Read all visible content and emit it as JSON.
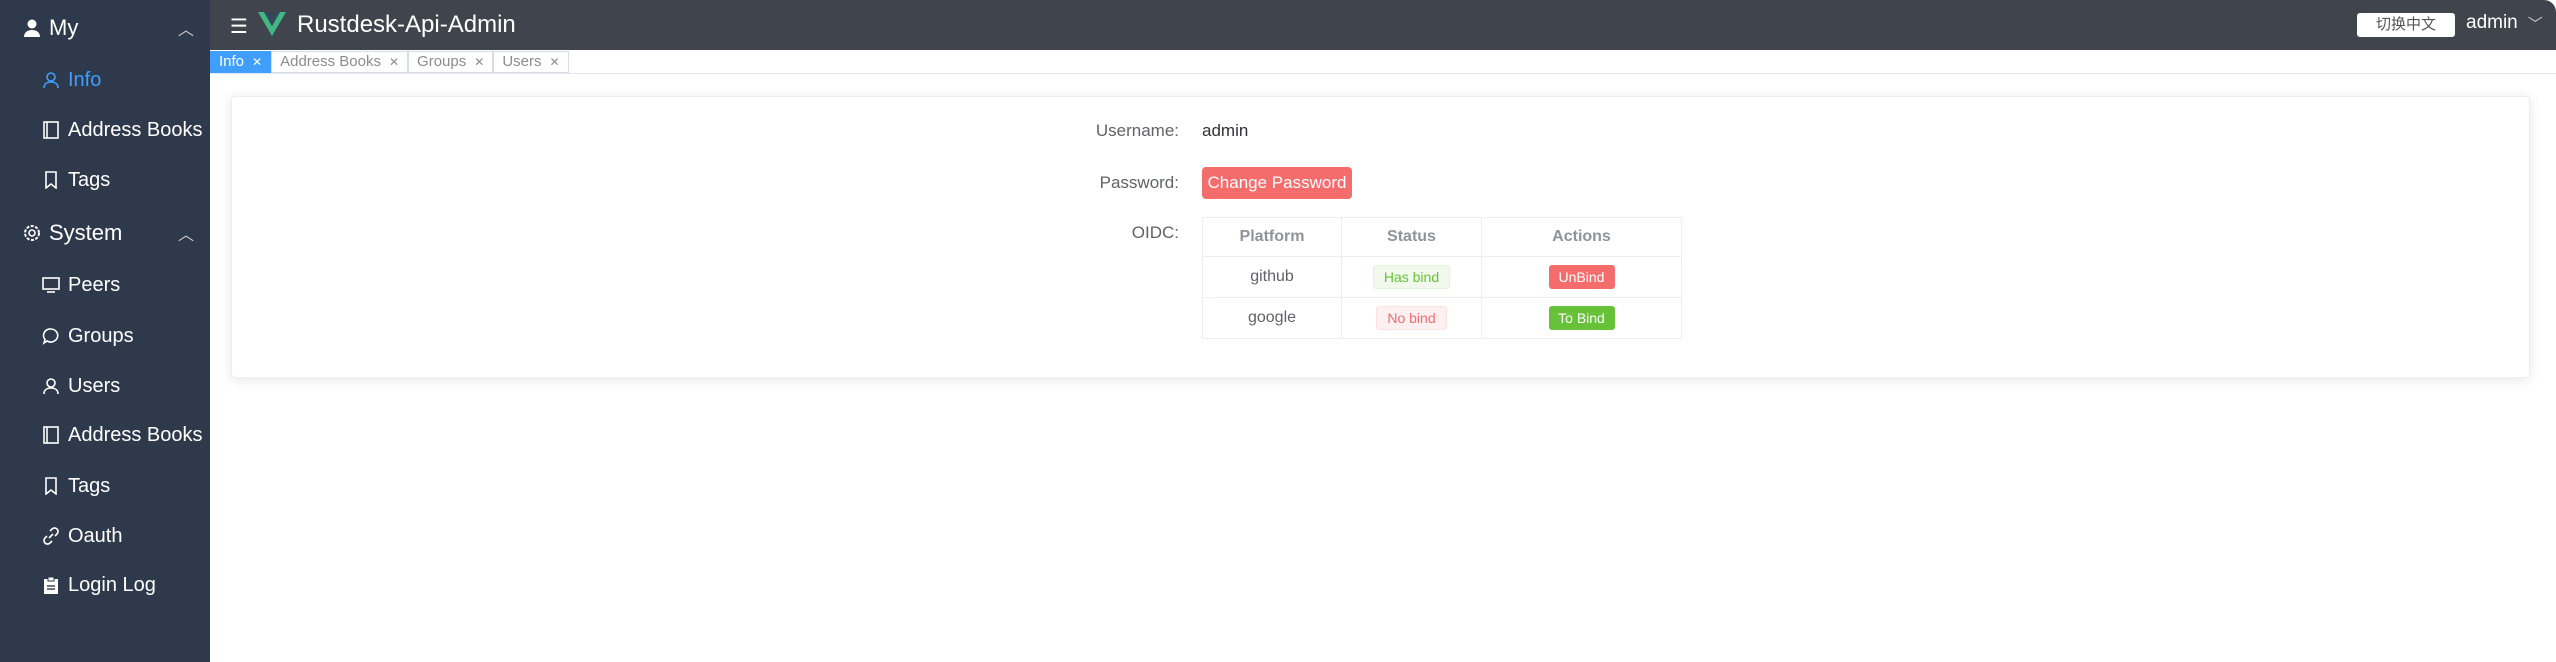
{
  "app": {
    "title": "Rustdesk-Api-Admin",
    "lang_button": "切换中文",
    "user": "admin"
  },
  "colors": {
    "sidebar": "#2e3a4b",
    "header": "#40444c",
    "accent": "#409eff",
    "danger": "#f56c6c",
    "success": "#67c23a"
  },
  "sidebar": {
    "groups": [
      {
        "label": "My",
        "icon": "user-icon",
        "items": [
          {
            "label": "Info",
            "icon": "user-outline-icon",
            "active": true
          },
          {
            "label": "Address Books",
            "icon": "book-icon"
          },
          {
            "label": "Tags",
            "icon": "bookmark-icon"
          }
        ]
      },
      {
        "label": "System",
        "icon": "gear-icon",
        "items": [
          {
            "label": "Peers",
            "icon": "monitor-icon"
          },
          {
            "label": "Groups",
            "icon": "chat-icon"
          },
          {
            "label": "Users",
            "icon": "user-outline-icon"
          },
          {
            "label": "Address Books",
            "icon": "book-icon"
          },
          {
            "label": "Tags",
            "icon": "bookmark-icon"
          },
          {
            "label": "Oauth",
            "icon": "link-icon"
          },
          {
            "label": "Login Log",
            "icon": "clipboard-icon"
          }
        ]
      }
    ]
  },
  "tabs": [
    {
      "label": "Info",
      "active": true
    },
    {
      "label": "Address Books"
    },
    {
      "label": "Groups"
    },
    {
      "label": "Users"
    }
  ],
  "main": {
    "username_label": "Username:",
    "username": "admin",
    "password_label": "Password:",
    "change_password": "Change Password",
    "oidc_label": "OIDC:",
    "oidc_table": {
      "headers": [
        "Platform",
        "Status",
        "Actions"
      ],
      "rows": [
        {
          "platform": "github",
          "status": "Has bind",
          "action": "UnBind"
        },
        {
          "platform": "google",
          "status": "No bind",
          "action": "To Bind"
        }
      ]
    }
  }
}
